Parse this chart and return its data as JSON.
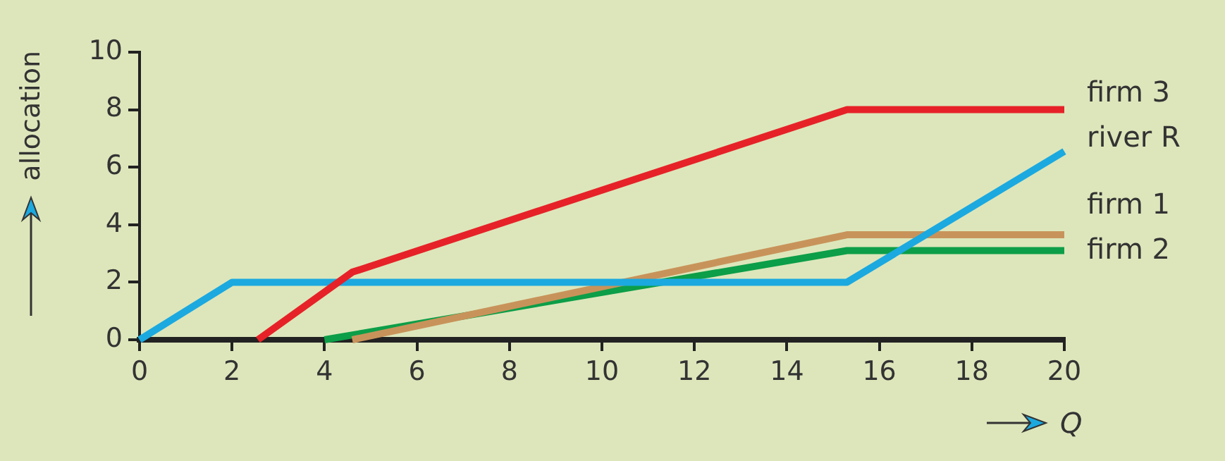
{
  "chart_data": {
    "type": "line",
    "xlabel": "Q",
    "ylabel": "allocation",
    "xlim": [
      0,
      20
    ],
    "xticks": [
      0,
      2,
      4,
      6,
      8,
      10,
      12,
      14,
      16,
      18,
      20
    ],
    "ylim": [
      0,
      10
    ],
    "yticks": [
      0,
      2,
      4,
      6,
      8,
      10
    ],
    "grid": false,
    "legend": false,
    "marker": "none",
    "line_style": "solid",
    "series": [
      {
        "name": "firm 3",
        "color": "#e62228",
        "x": [
          2.56,
          4.6,
          15.3,
          20
        ],
        "values": [
          0,
          2.35,
          8,
          8
        ]
      },
      {
        "name": "river R",
        "color": "#1ba9e0",
        "x": [
          0,
          2,
          15.3,
          20
        ],
        "values": [
          0,
          2,
          2,
          6.55
        ]
      },
      {
        "name": "firm 1",
        "color": "#c8935a",
        "x": [
          4.6,
          15.3,
          20
        ],
        "values": [
          0,
          3.65,
          3.65
        ]
      },
      {
        "name": "firm 2",
        "color": "#0c9e48",
        "x": [
          4,
          15.3,
          20
        ],
        "values": [
          0,
          3.1,
          3.1
        ]
      }
    ]
  }
}
